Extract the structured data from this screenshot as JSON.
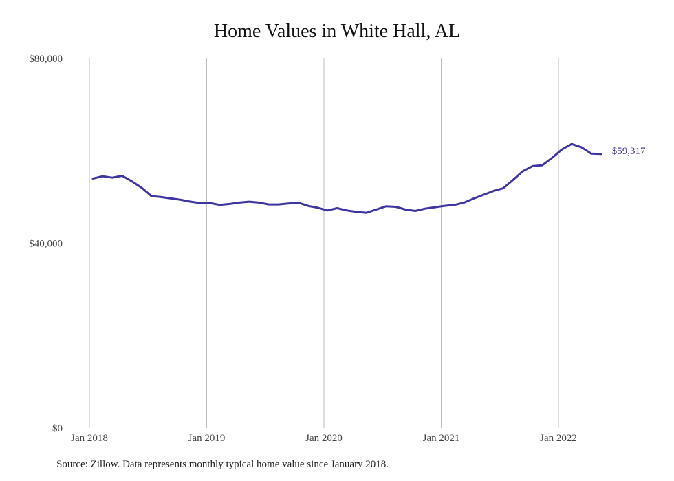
{
  "chart_data": {
    "type": "line",
    "title": "Home Values in White Hall, AL",
    "xlabel": "",
    "ylabel": "",
    "ylim": [
      0,
      80000
    ],
    "y_ticks": [
      {
        "value": 0,
        "label": "$0"
      },
      {
        "value": 40000,
        "label": "$40,000"
      },
      {
        "value": 80000,
        "label": "$80,000"
      }
    ],
    "x_ticks": [
      {
        "value": 0,
        "label": "Jan 2018"
      },
      {
        "value": 12,
        "label": "Jan 2019"
      },
      {
        "value": 24,
        "label": "Jan 2020"
      },
      {
        "value": 36,
        "label": "Jan 2021"
      },
      {
        "value": 48,
        "label": "Jan 2022"
      }
    ],
    "grid": "vertical",
    "line_color": "#3d35a0",
    "end_label": "$59,317",
    "series": [
      {
        "values": [
          54000,
          54500,
          54200,
          54600,
          53400,
          52000,
          50200,
          50000,
          49700,
          49400,
          49000,
          48700,
          48700,
          48300,
          48500,
          48800,
          49000,
          48800,
          48400,
          48400,
          48600,
          48800,
          48100,
          47700,
          47100,
          47600,
          47100,
          46800,
          46600,
          47300,
          48000,
          47900,
          47300,
          47000,
          47500,
          47800,
          48100,
          48300,
          48800,
          49700,
          50500,
          51300,
          51900,
          53700,
          55600,
          56700,
          56900,
          58500,
          60300,
          61500,
          60800,
          59400,
          59317
        ]
      }
    ]
  },
  "source_note": "Source: Zillow. Data represents monthly typical home value since January 2018."
}
